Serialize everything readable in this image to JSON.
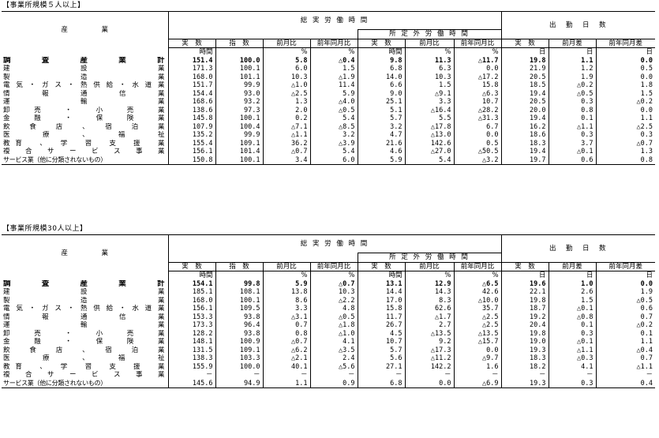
{
  "sections": [
    {
      "label": "【事業所規模５人以上】",
      "headers": {
        "industry": "産　　　　　業",
        "total_hours": "総 実 労 働 時 間",
        "overtime": "所 定 外 労 働 時 間",
        "days": "出　勤　日　数",
        "actual": "実　数",
        "index": "指　数",
        "mom": "前月比",
        "yoy": "前年同月比",
        "ot_actual": "実　数",
        "ot_mom": "前月比",
        "ot_yoy": "前年同月比",
        "d_actual": "実　数",
        "d_mom": "前月差",
        "d_yoy": "前年同月差"
      },
      "units": [
        "時間",
        "",
        "%",
        "%",
        "時間",
        "%",
        "%",
        "日",
        "日",
        "日"
      ],
      "rows": [
        {
          "name": "調　査　産　業　計",
          "bold": true,
          "v": [
            "151.4",
            "100.0",
            "5.8",
            "△0.4",
            "9.8",
            "11.3",
            "△11.7",
            "19.8",
            "1.1",
            "0.0"
          ]
        },
        {
          "name": "建　　　設　　　業",
          "v": [
            "171.3",
            "100.1",
            "6.0",
            "1.5",
            "6.8",
            "6.3",
            "0.0",
            "21.9",
            "1.2",
            "0.5"
          ]
        },
        {
          "name": "製　　　造　　　業",
          "v": [
            "168.0",
            "101.1",
            "10.3",
            "△1.9",
            "14.0",
            "10.3",
            "△17.2",
            "20.5",
            "1.9",
            "0.0"
          ]
        },
        {
          "name": "電気・ガス・熱供給・水道業",
          "v": [
            "151.7",
            "99.9",
            "△1.0",
            "11.4",
            "6.6",
            "1.5",
            "15.8",
            "18.5",
            "△0.2",
            "1.8"
          ]
        },
        {
          "name": "情　報　通　信　業",
          "v": [
            "154.4",
            "93.0",
            "△2.5",
            "5.9",
            "9.0",
            "△9.1",
            "△6.3",
            "19.4",
            "△0.5",
            "1.5"
          ]
        },
        {
          "name": "運　　　輸　　　業",
          "v": [
            "168.6",
            "93.2",
            "1.3",
            "△4.0",
            "25.1",
            "3.3",
            "10.7",
            "20.5",
            "0.3",
            "△0.2"
          ]
        },
        {
          "name": "卸　売　・　小　売　業",
          "v": [
            "138.6",
            "97.3",
            "2.0",
            "△0.5",
            "5.1",
            "△16.4",
            "△28.2",
            "20.0",
            "0.8",
            "0.0"
          ]
        },
        {
          "name": "金　融　・　保　険　業",
          "v": [
            "145.8",
            "100.1",
            "0.2",
            "5.4",
            "5.7",
            "5.5",
            "△31.3",
            "19.4",
            "0.1",
            "1.1"
          ]
        },
        {
          "name": "飲　食　店　、　宿　泊　業",
          "v": [
            "107.9",
            "100.4",
            "△7.1",
            "△8.5",
            "3.2",
            "△17.8",
            "6.7",
            "16.2",
            "△1.1",
            "△2.5"
          ]
        },
        {
          "name": "医　　療　　、　　福　　祉",
          "v": [
            "135.2",
            "99.9",
            "△1.1",
            "3.2",
            "4.7",
            "△13.0",
            "0.0",
            "18.6",
            "0.3",
            "0.3"
          ]
        },
        {
          "name": "教育　、　学　習　支　援　業",
          "v": [
            "155.4",
            "109.1",
            "36.2",
            "△3.9",
            "21.6",
            "142.6",
            "0.5",
            "18.3",
            "3.7",
            "△0.7"
          ]
        },
        {
          "name": "複　合　サ　ー　ビ　ス　事　業",
          "v": [
            "156.1",
            "101.4",
            "△0.7",
            "5.4",
            "4.6",
            "△27.0",
            "△50.5",
            "19.4",
            "△0.1",
            "1.3"
          ]
        },
        {
          "name": "サービス業（他に分類されないもの）",
          "small": true,
          "v": [
            "150.8",
            "100.1",
            "3.4",
            "6.0",
            "5.9",
            "5.4",
            "△3.2",
            "19.7",
            "0.6",
            "0.8"
          ]
        }
      ]
    },
    {
      "label": "【事業所規模30人以上】",
      "headers": {
        "industry": "産　　　　　業",
        "total_hours": "総 実 労 働 時 間",
        "overtime": "所 定 外 労 働 時 間",
        "days": "出　勤　日　数",
        "actual": "実　数",
        "index": "指　数",
        "mom": "前月比",
        "yoy": "前年同月比",
        "ot_actual": "実　数",
        "ot_mom": "前月比",
        "ot_yoy": "前年同月比",
        "d_actual": "実　数",
        "d_mom": "前月差",
        "d_yoy": "前年同月差"
      },
      "units": [
        "時間",
        "",
        "%",
        "%",
        "時間",
        "%",
        "%",
        "日",
        "日",
        "日"
      ],
      "rows": [
        {
          "name": "調　査　産　業　計",
          "bold": true,
          "v": [
            "154.1",
            "99.8",
            "5.9",
            "△0.7",
            "13.1",
            "12.9",
            "△6.5",
            "19.6",
            "1.0",
            "0.0"
          ]
        },
        {
          "name": "建　　　設　　　業",
          "v": [
            "185.1",
            "108.1",
            "13.8",
            "10.3",
            "14.4",
            "14.3",
            "42.6",
            "22.1",
            "2.6",
            "1.9"
          ]
        },
        {
          "name": "製　　　造　　　業",
          "v": [
            "168.0",
            "100.1",
            "8.6",
            "△2.2",
            "17.0",
            "8.3",
            "△10.0",
            "19.8",
            "1.5",
            "△0.5"
          ]
        },
        {
          "name": "電気・ガス・熱供給・水道業",
          "v": [
            "156.1",
            "109.5",
            "3.3",
            "4.8",
            "15.8",
            "62.6",
            "35.7",
            "18.7",
            "△0.1",
            "0.6"
          ]
        },
        {
          "name": "情　報　通　信　業",
          "v": [
            "153.3",
            "93.8",
            "△3.1",
            "△0.5",
            "11.7",
            "△1.7",
            "△2.5",
            "19.2",
            "△0.8",
            "0.7"
          ]
        },
        {
          "name": "運　　　輸　　　業",
          "v": [
            "173.3",
            "96.4",
            "0.7",
            "△1.8",
            "26.7",
            "2.7",
            "△2.5",
            "20.4",
            "0.1",
            "△0.2"
          ]
        },
        {
          "name": "卸　売　・　小　売　業",
          "v": [
            "128.2",
            "93.8",
            "0.8",
            "△1.0",
            "4.5",
            "△13.5",
            "△13.5",
            "19.8",
            "0.3",
            "0.1"
          ]
        },
        {
          "name": "金　融　・　保　険　業",
          "v": [
            "148.1",
            "100.9",
            "△0.7",
            "4.1",
            "10.7",
            "9.2",
            "△15.7",
            "19.0",
            "△0.1",
            "1.1"
          ]
        },
        {
          "name": "飲　食　店　、　宿　泊　業",
          "v": [
            "131.5",
            "109.1",
            "△6.2",
            "△3.5",
            "5.7",
            "△17.3",
            "0.0",
            "19.3",
            "△1.1",
            "△0.4"
          ]
        },
        {
          "name": "医　　療　　、　　福　　祉",
          "v": [
            "138.3",
            "103.3",
            "△2.1",
            "2.4",
            "5.6",
            "△11.2",
            "△9.7",
            "18.3",
            "△0.3",
            "0.7"
          ]
        },
        {
          "name": "教育　、　学　習　支　援　業",
          "v": [
            "155.9",
            "100.0",
            "40.1",
            "△5.6",
            "27.1",
            "142.2",
            "1.6",
            "18.2",
            "4.1",
            "△1.1"
          ]
        },
        {
          "name": "複　合　サ　ー　ビ　ス　事　業",
          "v": [
            "－",
            "－",
            "－",
            "－",
            "－",
            "－",
            "－",
            "－",
            "－",
            "－"
          ]
        },
        {
          "name": "サービス業（他に分類されないもの）",
          "small": true,
          "v": [
            "145.6",
            "94.9",
            "1.1",
            "0.9",
            "6.8",
            "0.0",
            "△6.9",
            "19.3",
            "0.3",
            "0.4"
          ]
        }
      ]
    }
  ]
}
